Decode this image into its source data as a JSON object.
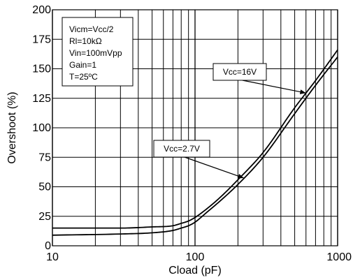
{
  "chart_data": {
    "type": "line",
    "xlabel": "Cload (pF)",
    "ylabel": "Overshoot (%)",
    "x_scale": "log",
    "xlim": [
      10,
      1000
    ],
    "ylim": [
      0,
      200
    ],
    "grid": true,
    "x_ticks": [
      {
        "value": 10,
        "label": "10"
      },
      {
        "value": 100,
        "label": "100"
      },
      {
        "value": 1000,
        "label": "1000"
      }
    ],
    "x_minor_ticks": [
      20,
      30,
      40,
      50,
      60,
      70,
      80,
      90,
      200,
      300,
      400,
      500,
      600,
      700,
      800,
      900
    ],
    "y_ticks": [
      {
        "value": 0,
        "label": "0"
      },
      {
        "value": 25,
        "label": "25"
      },
      {
        "value": 50,
        "label": "50"
      },
      {
        "value": 75,
        "label": "75"
      },
      {
        "value": 100,
        "label": "100"
      },
      {
        "value": 125,
        "label": "125"
      },
      {
        "value": 150,
        "label": "150"
      },
      {
        "value": 175,
        "label": "175"
      },
      {
        "value": 200,
        "label": "200"
      }
    ],
    "conditions": [
      "Vicm=Vcc/2",
      "Rl=10kΩ",
      "Vin=100mVpp",
      "Gain=1",
      "T=25ºC"
    ],
    "series": [
      {
        "name": "Vcc=2.7V",
        "x": [
          10,
          30,
          50,
          70,
          80,
          90,
          100,
          120,
          150,
          200,
          300,
          500,
          700,
          1000
        ],
        "y": [
          9,
          10,
          11,
          13,
          15,
          17,
          20,
          28,
          38,
          52,
          75,
          112,
          136,
          160
        ]
      },
      {
        "name": "Vcc=16V",
        "x": [
          10,
          30,
          50,
          70,
          80,
          90,
          100,
          120,
          150,
          200,
          300,
          500,
          700,
          1000
        ],
        "y": [
          15,
          15,
          16,
          17,
          19,
          21,
          24,
          31,
          41,
          56,
          79,
          117,
          140,
          166
        ]
      }
    ],
    "annotations": [
      {
        "text": "Vcc=16V",
        "series": "Vcc=16V",
        "at_x": 600
      },
      {
        "text": "Vcc=2.7V",
        "series": "Vcc=2.7V",
        "at_x": 220
      }
    ]
  }
}
